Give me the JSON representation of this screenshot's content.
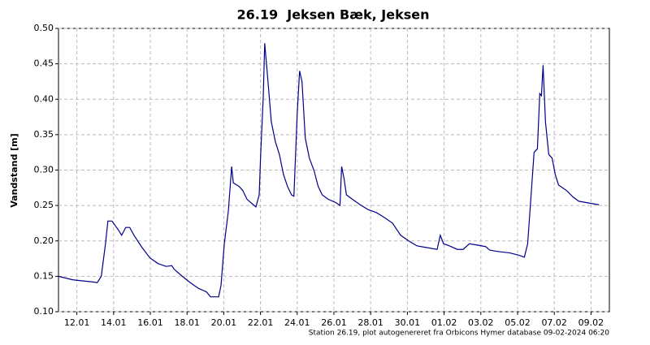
{
  "chart_data": {
    "type": "line",
    "title": "26.19  Jeksen Bæk, Jeksen",
    "y_label": "Vandstand [m]",
    "footnote": "Station 26.19, plot autogenereret fra Orbicons Hymer database 09-02-2024 06:20",
    "color": "#00008b",
    "grid": true,
    "xlim": [
      11,
      41
    ],
    "xticks": [
      {
        "value": 12,
        "label": "12.01"
      },
      {
        "value": 14,
        "label": "14.01"
      },
      {
        "value": 16,
        "label": "16.01"
      },
      {
        "value": 18,
        "label": "18.01"
      },
      {
        "value": 20,
        "label": "20.01"
      },
      {
        "value": 22,
        "label": "22.01"
      },
      {
        "value": 24,
        "label": "24.01"
      },
      {
        "value": 26,
        "label": "26.01"
      },
      {
        "value": 28,
        "label": "28.01"
      },
      {
        "value": 30,
        "label": "30.01"
      },
      {
        "value": 32,
        "label": "01.02"
      },
      {
        "value": 34,
        "label": "03.02"
      },
      {
        "value": 36,
        "label": "05.02"
      },
      {
        "value": 38,
        "label": "07.02"
      },
      {
        "value": 40,
        "label": "09.02"
      }
    ],
    "ylim": [
      0.1,
      0.5
    ],
    "yticks": [
      {
        "value": 0.1,
        "label": "0.10"
      },
      0.15,
      {
        "value": 0.2,
        "label": "0.20"
      },
      0.25,
      {
        "value": 0.3,
        "label": "0.30"
      },
      0.35,
      {
        "value": 0.4,
        "label": "0.40"
      },
      0.45,
      {
        "value": 0.5,
        "label": "0.50"
      }
    ],
    "x": [
      11.0,
      11.79,
      12.89,
      13.11,
      13.33,
      13.56,
      13.69,
      13.91,
      14.22,
      14.44,
      14.66,
      14.88,
      15.11,
      15.54,
      15.98,
      16.42,
      16.86,
      17.17,
      17.3,
      17.74,
      18.18,
      18.62,
      19.06,
      19.28,
      19.72,
      19.85,
      20.03,
      20.25,
      20.43,
      20.52,
      20.83,
      21.04,
      21.26,
      21.48,
      21.75,
      21.93,
      22.01,
      22.15,
      22.23,
      22.37,
      22.59,
      22.81,
      23.03,
      23.25,
      23.47,
      23.69,
      23.82,
      24.0,
      24.13,
      24.26,
      24.44,
      24.66,
      24.92,
      25.14,
      25.36,
      25.67,
      26.11,
      26.33,
      26.42,
      26.55,
      26.68,
      26.99,
      27.43,
      27.87,
      28.31,
      28.75,
      29.19,
      29.63,
      30.07,
      30.52,
      30.96,
      31.62,
      31.79,
      31.97,
      32.28,
      32.72,
      33.03,
      33.38,
      33.82,
      34.26,
      34.48,
      34.92,
      35.58,
      36.04,
      36.37,
      36.55,
      36.77,
      36.9,
      37.08,
      37.21,
      37.3,
      37.39,
      37.52,
      37.7,
      37.88,
      38.05,
      38.23,
      38.67,
      39.02,
      39.33,
      40.43
    ],
    "values": [
      0.15,
      0.145,
      0.142,
      0.141,
      0.15,
      0.196,
      0.228,
      0.228,
      0.217,
      0.208,
      0.219,
      0.219,
      0.208,
      0.191,
      0.176,
      0.168,
      0.164,
      0.165,
      0.16,
      0.15,
      0.141,
      0.133,
      0.128,
      0.121,
      0.121,
      0.137,
      0.196,
      0.242,
      0.305,
      0.282,
      0.277,
      0.271,
      0.259,
      0.254,
      0.248,
      0.265,
      0.322,
      0.403,
      0.479,
      0.437,
      0.368,
      0.34,
      0.322,
      0.294,
      0.277,
      0.265,
      0.263,
      0.38,
      0.44,
      0.425,
      0.345,
      0.317,
      0.299,
      0.277,
      0.265,
      0.259,
      0.254,
      0.25,
      0.305,
      0.288,
      0.265,
      0.259,
      0.251,
      0.244,
      0.24,
      0.233,
      0.225,
      0.208,
      0.2,
      0.193,
      0.191,
      0.188,
      0.208,
      0.196,
      0.193,
      0.188,
      0.188,
      0.196,
      0.194,
      0.192,
      0.187,
      0.185,
      0.183,
      0.18,
      0.177,
      0.196,
      0.277,
      0.325,
      0.33,
      0.408,
      0.405,
      0.448,
      0.368,
      0.322,
      0.317,
      0.294,
      0.279,
      0.271,
      0.262,
      0.256,
      0.251
    ]
  }
}
